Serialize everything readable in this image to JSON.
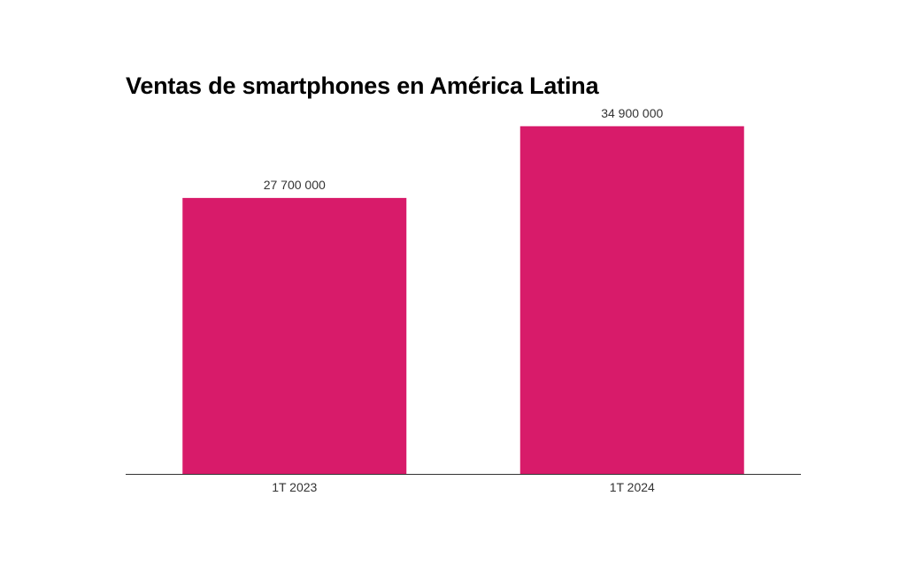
{
  "chart_data": {
    "type": "bar",
    "title": "Ventas de smartphones en América Latina",
    "categories": [
      "1T 2023",
      "1T 2024"
    ],
    "values": [
      27700000,
      34900000
    ],
    "value_labels": [
      "27 700 000",
      "34 900 000"
    ],
    "xlabel": "",
    "ylabel": "",
    "ylim": [
      0,
      35500000
    ],
    "grid": false,
    "legend": "none",
    "colors": {
      "bar": "#d81b6a",
      "axis": "#333333",
      "text": "#333333",
      "title": "#000000"
    }
  }
}
